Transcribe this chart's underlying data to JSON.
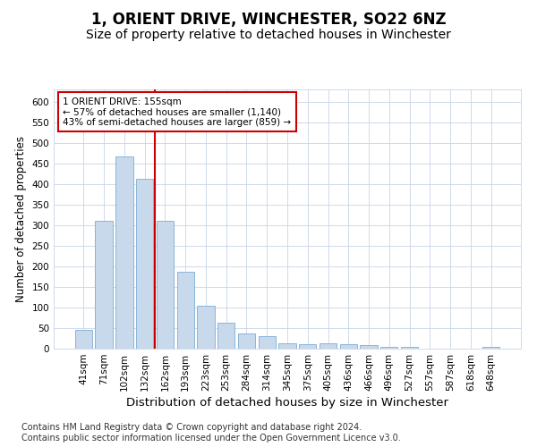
{
  "title": "1, ORIENT DRIVE, WINCHESTER, SO22 6NZ",
  "subtitle": "Size of property relative to detached houses in Winchester",
  "xlabel": "Distribution of detached houses by size in Winchester",
  "ylabel": "Number of detached properties",
  "categories": [
    "41sqm",
    "71sqm",
    "102sqm",
    "132sqm",
    "162sqm",
    "193sqm",
    "223sqm",
    "253sqm",
    "284sqm",
    "314sqm",
    "345sqm",
    "375sqm",
    "405sqm",
    "436sqm",
    "466sqm",
    "496sqm",
    "527sqm",
    "557sqm",
    "587sqm",
    "618sqm",
    "648sqm"
  ],
  "values": [
    45,
    311,
    468,
    412,
    311,
    186,
    104,
    64,
    37,
    30,
    13,
    11,
    13,
    11,
    9,
    5,
    4,
    1,
    0,
    0,
    4
  ],
  "bar_color": "#c8d9ec",
  "bar_edge_color": "#7aaed4",
  "vline_color": "#cc0000",
  "vline_x_index": 4,
  "annotation_text": "1 ORIENT DRIVE: 155sqm\n← 57% of detached houses are smaller (1,140)\n43% of semi-detached houses are larger (859) →",
  "annotation_box_color": "#ffffff",
  "annotation_box_edge_color": "#cc0000",
  "ylim": [
    0,
    630
  ],
  "yticks": [
    0,
    50,
    100,
    150,
    200,
    250,
    300,
    350,
    400,
    450,
    500,
    550,
    600
  ],
  "footer_line1": "Contains HM Land Registry data © Crown copyright and database right 2024.",
  "footer_line2": "Contains public sector information licensed under the Open Government Licence v3.0.",
  "title_fontsize": 12,
  "subtitle_fontsize": 10,
  "xlabel_fontsize": 9.5,
  "ylabel_fontsize": 8.5,
  "tick_fontsize": 7.5,
  "annotation_fontsize": 7.5,
  "footer_fontsize": 7,
  "background_color": "#ffffff",
  "grid_color": "#c8d4e8"
}
